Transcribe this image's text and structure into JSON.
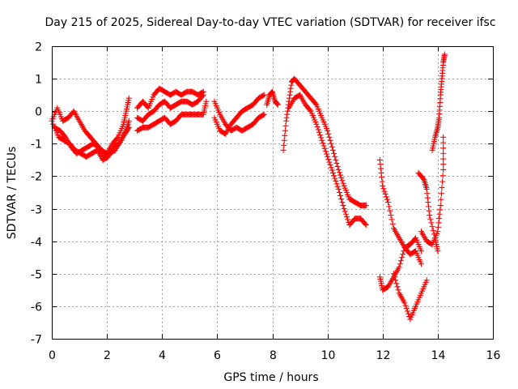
{
  "chart_data": {
    "type": "scatter",
    "title": "Day 215 of 2025, Sidereal Day-to-day VTEC variation (SDTVAR) for receiver ifsc",
    "xlabel": "GPS time / hours",
    "ylabel": "SDTVAR / TECUs",
    "xlim": [
      0,
      16
    ],
    "ylim": [
      -7,
      2
    ],
    "xticks": [
      0,
      2,
      4,
      6,
      8,
      10,
      12,
      14,
      16
    ],
    "yticks": [
      -7,
      -6,
      -5,
      -4,
      -3,
      -2,
      -1,
      0,
      1,
      2
    ],
    "grid": true,
    "marker": "+",
    "series": [
      {
        "name": "SDTVAR",
        "color": "#ff0000",
        "traces": [
          [
            [
              0.0,
              -0.3
            ],
            [
              0.2,
              0.1
            ],
            [
              0.4,
              -0.3
            ],
            [
              0.6,
              -0.2
            ],
            [
              0.8,
              0.0
            ],
            [
              1.0,
              -0.3
            ],
            [
              1.2,
              -0.6
            ],
            [
              1.4,
              -0.8
            ],
            [
              1.6,
              -1.0
            ],
            [
              1.8,
              -1.2
            ],
            [
              2.0,
              -1.3
            ],
            [
              2.2,
              -1.0
            ],
            [
              2.4,
              -0.8
            ],
            [
              2.6,
              -0.4
            ],
            [
              2.7,
              0.0
            ],
            [
              2.8,
              0.4
            ]
          ],
          [
            [
              0.1,
              -0.5
            ],
            [
              0.3,
              -0.6
            ],
            [
              0.5,
              -0.8
            ],
            [
              0.7,
              -1.1
            ],
            [
              0.9,
              -1.3
            ],
            [
              1.1,
              -1.2
            ],
            [
              1.3,
              -1.1
            ],
            [
              1.5,
              -1.0
            ],
            [
              1.7,
              -1.1
            ],
            [
              1.9,
              -1.4
            ],
            [
              2.1,
              -1.3
            ],
            [
              2.3,
              -1.2
            ],
            [
              2.5,
              -0.9
            ],
            [
              2.7,
              -0.6
            ],
            [
              2.8,
              -0.3
            ]
          ],
          [
            [
              0.05,
              -0.4
            ],
            [
              0.25,
              -0.8
            ],
            [
              0.45,
              -0.9
            ],
            [
              0.65,
              -1.0
            ],
            [
              0.85,
              -1.2
            ],
            [
              1.05,
              -1.3
            ],
            [
              1.25,
              -1.4
            ],
            [
              1.45,
              -1.3
            ],
            [
              1.65,
              -1.2
            ],
            [
              1.85,
              -1.5
            ],
            [
              2.05,
              -1.4
            ],
            [
              2.25,
              -1.1
            ],
            [
              2.45,
              -1.0
            ],
            [
              2.65,
              -0.7
            ],
            [
              2.8,
              -0.5
            ]
          ],
          [
            [
              3.1,
              0.1
            ],
            [
              3.3,
              0.3
            ],
            [
              3.5,
              0.1
            ],
            [
              3.7,
              0.5
            ],
            [
              3.9,
              0.7
            ],
            [
              4.1,
              0.6
            ],
            [
              4.3,
              0.5
            ],
            [
              4.5,
              0.6
            ],
            [
              4.7,
              0.5
            ],
            [
              4.9,
              0.6
            ],
            [
              5.1,
              0.6
            ],
            [
              5.3,
              0.5
            ],
            [
              5.5,
              0.6
            ]
          ],
          [
            [
              3.1,
              -0.2
            ],
            [
              3.3,
              -0.3
            ],
            [
              3.5,
              -0.1
            ],
            [
              3.7,
              0.0
            ],
            [
              3.9,
              0.2
            ],
            [
              4.1,
              0.3
            ],
            [
              4.3,
              0.1
            ],
            [
              4.5,
              0.2
            ],
            [
              4.7,
              0.3
            ],
            [
              4.9,
              0.3
            ],
            [
              5.1,
              0.2
            ],
            [
              5.3,
              0.3
            ],
            [
              5.5,
              0.5
            ]
          ],
          [
            [
              3.1,
              -0.6
            ],
            [
              3.3,
              -0.5
            ],
            [
              3.5,
              -0.5
            ],
            [
              3.7,
              -0.4
            ],
            [
              3.9,
              -0.3
            ],
            [
              4.1,
              -0.2
            ],
            [
              4.3,
              -0.4
            ],
            [
              4.5,
              -0.3
            ],
            [
              4.7,
              -0.1
            ],
            [
              4.9,
              -0.1
            ],
            [
              5.1,
              -0.1
            ],
            [
              5.3,
              -0.1
            ],
            [
              5.5,
              -0.1
            ],
            [
              5.6,
              0.3
            ]
          ],
          [
            [
              5.9,
              0.3
            ],
            [
              6.1,
              -0.1
            ],
            [
              6.3,
              -0.4
            ],
            [
              6.5,
              -0.6
            ],
            [
              6.7,
              -0.5
            ],
            [
              6.9,
              -0.6
            ],
            [
              7.1,
              -0.5
            ],
            [
              7.3,
              -0.4
            ],
            [
              7.5,
              -0.2
            ],
            [
              7.7,
              -0.1
            ]
          ],
          [
            [
              5.9,
              -0.2
            ],
            [
              6.1,
              -0.6
            ],
            [
              6.3,
              -0.7
            ],
            [
              6.5,
              -0.4
            ],
            [
              6.7,
              -0.2
            ],
            [
              6.9,
              0.0
            ],
            [
              7.1,
              0.1
            ],
            [
              7.3,
              0.2
            ],
            [
              7.5,
              0.4
            ],
            [
              7.7,
              0.5
            ]
          ],
          [
            [
              7.8,
              0.2
            ],
            [
              7.9,
              0.5
            ],
            [
              8.0,
              0.6
            ],
            [
              8.1,
              0.3
            ],
            [
              8.2,
              0.2
            ]
          ],
          [
            [
              8.4,
              -1.2
            ],
            [
              8.5,
              -0.3
            ],
            [
              8.6,
              0.3
            ],
            [
              8.7,
              0.9
            ],
            [
              8.8,
              1.0
            ],
            [
              9.0,
              0.8
            ],
            [
              9.2,
              0.6
            ],
            [
              9.4,
              0.4
            ],
            [
              9.6,
              0.2
            ],
            [
              9.8,
              -0.2
            ],
            [
              10.0,
              -0.6
            ],
            [
              10.2,
              -1.2
            ],
            [
              10.4,
              -1.8
            ],
            [
              10.6,
              -2.3
            ],
            [
              10.8,
              -2.7
            ],
            [
              11.0,
              -2.8
            ],
            [
              11.2,
              -2.9
            ],
            [
              11.4,
              -2.9
            ]
          ],
          [
            [
              8.6,
              0.1
            ],
            [
              8.8,
              0.4
            ],
            [
              9.0,
              0.5
            ],
            [
              9.2,
              0.2
            ],
            [
              9.4,
              0.0
            ],
            [
              9.6,
              -0.4
            ],
            [
              9.8,
              -0.9
            ],
            [
              10.0,
              -1.4
            ],
            [
              10.2,
              -1.9
            ],
            [
              10.4,
              -2.4
            ],
            [
              10.6,
              -3.0
            ],
            [
              10.8,
              -3.5
            ],
            [
              11.0,
              -3.3
            ],
            [
              11.2,
              -3.3
            ],
            [
              11.4,
              -3.5
            ]
          ],
          [
            [
              11.9,
              -1.5
            ],
            [
              12.0,
              -2.3
            ],
            [
              12.2,
              -2.8
            ],
            [
              12.4,
              -3.6
            ],
            [
              12.6,
              -3.9
            ],
            [
              12.8,
              -4.2
            ],
            [
              13.0,
              -4.4
            ],
            [
              13.2,
              -4.3
            ],
            [
              13.4,
              -4.7
            ]
          ],
          [
            [
              11.9,
              -5.1
            ],
            [
              12.0,
              -5.5
            ],
            [
              12.2,
              -5.4
            ],
            [
              12.4,
              -5.1
            ],
            [
              12.6,
              -4.8
            ],
            [
              12.8,
              -4.2
            ],
            [
              13.0,
              -4.1
            ],
            [
              13.2,
              -3.9
            ],
            [
              13.4,
              -4.3
            ]
          ],
          [
            [
              12.4,
              -5.0
            ],
            [
              12.6,
              -5.6
            ],
            [
              12.8,
              -5.9
            ],
            [
              13.0,
              -6.4
            ],
            [
              13.2,
              -6.0
            ],
            [
              13.4,
              -5.6
            ],
            [
              13.6,
              -5.2
            ]
          ],
          [
            [
              13.3,
              -1.9
            ],
            [
              13.5,
              -2.1
            ],
            [
              13.6,
              -2.4
            ],
            [
              13.7,
              -3.2
            ],
            [
              13.9,
              -3.9
            ],
            [
              14.0,
              -4.3
            ]
          ],
          [
            [
              13.4,
              -3.7
            ],
            [
              13.6,
              -4.0
            ],
            [
              13.8,
              -4.1
            ],
            [
              14.0,
              -3.7
            ],
            [
              14.1,
              -2.9
            ],
            [
              14.2,
              -1.8
            ],
            [
              14.2,
              -0.8
            ]
          ],
          [
            [
              13.8,
              -1.2
            ],
            [
              13.9,
              -0.8
            ],
            [
              14.0,
              -0.5
            ],
            [
              14.05,
              -0.2
            ],
            [
              14.1,
              0.5
            ],
            [
              14.15,
              1.0
            ],
            [
              14.2,
              1.5
            ],
            [
              14.25,
              1.75
            ]
          ]
        ]
      }
    ]
  }
}
